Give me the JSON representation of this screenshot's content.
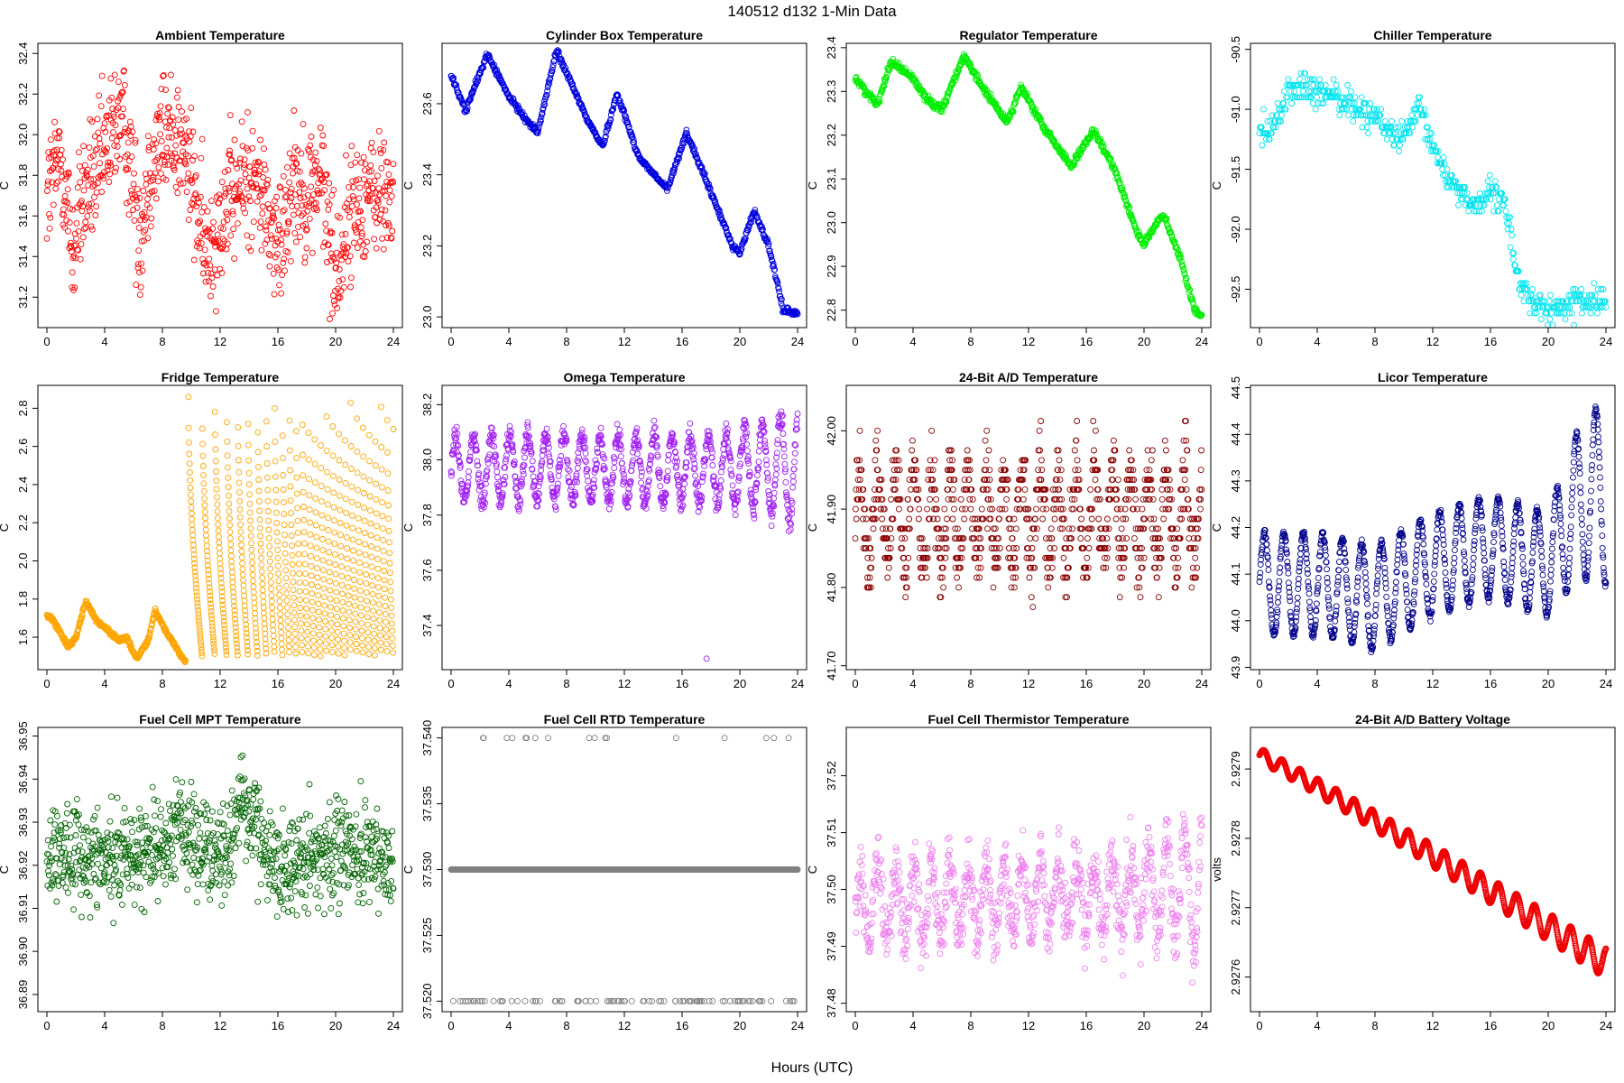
{
  "page_title": "140512   d132   1-Min Data",
  "x_label": "Hours (UTC)",
  "chart_data": [
    {
      "type": "scatter",
      "title": "Ambient Temperature",
      "ylabel": "C",
      "color": "#ff0000",
      "xlim": [
        0,
        24
      ],
      "ylim": [
        31.05,
        32.45
      ],
      "xticks": [
        0,
        4,
        8,
        12,
        16,
        20,
        24
      ],
      "yticks": [
        31.2,
        31.4,
        31.6,
        31.8,
        32.0,
        32.2,
        32.4
      ],
      "ytick_labels": [
        "31.2",
        "31.4",
        "31.6",
        "31.8",
        "32.0",
        "32.2",
        "32.4"
      ],
      "pattern": {
        "kind": "noisy",
        "curve": [
          [
            0,
            31.7
          ],
          [
            1,
            31.9
          ],
          [
            1.8,
            31.4
          ],
          [
            2.5,
            31.7
          ],
          [
            3.5,
            31.8
          ],
          [
            5,
            32.1
          ],
          [
            5.5,
            32.0
          ],
          [
            6.5,
            31.5
          ],
          [
            7,
            31.8
          ],
          [
            8,
            32.0
          ],
          [
            9,
            32.0
          ],
          [
            10,
            31.8
          ],
          [
            11,
            31.4
          ],
          [
            12,
            31.6
          ],
          [
            13,
            31.7
          ],
          [
            14,
            31.8
          ],
          [
            15,
            31.7
          ],
          [
            16,
            31.4
          ],
          [
            17,
            31.8
          ],
          [
            18,
            31.7
          ],
          [
            19,
            31.8
          ],
          [
            20,
            31.3
          ],
          [
            21,
            31.6
          ],
          [
            22,
            31.7
          ],
          [
            23,
            31.7
          ],
          [
            24,
            31.7
          ]
        ],
        "noise": 0.22,
        "n": 900
      }
    },
    {
      "type": "scatter",
      "title": "Cylinder Box Temperature",
      "ylabel": "C",
      "color": "#0000dd",
      "xlim": [
        0,
        24
      ],
      "ylim": [
        22.97,
        23.77
      ],
      "xticks": [
        0,
        4,
        8,
        12,
        16,
        20,
        24
      ],
      "yticks": [
        23.0,
        23.2,
        23.4,
        23.6
      ],
      "ytick_labels": [
        "23.0",
        "23.2",
        "23.4",
        "23.6"
      ],
      "pattern": {
        "kind": "smooth",
        "curve": [
          [
            0,
            23.68
          ],
          [
            1,
            23.58
          ],
          [
            2.5,
            23.74
          ],
          [
            4,
            23.62
          ],
          [
            5.5,
            23.54
          ],
          [
            6,
            23.52
          ],
          [
            7.3,
            23.75
          ],
          [
            9.5,
            23.55
          ],
          [
            10.5,
            23.48
          ],
          [
            11.5,
            23.63
          ],
          [
            13,
            23.45
          ],
          [
            14.5,
            23.38
          ],
          [
            15,
            23.36
          ],
          [
            16.3,
            23.52
          ],
          [
            18,
            23.35
          ],
          [
            19.5,
            23.2
          ],
          [
            20,
            23.18
          ],
          [
            21,
            23.3
          ],
          [
            22,
            23.2
          ],
          [
            23,
            23.02
          ],
          [
            24,
            23.01
          ]
        ],
        "noise": 0.006,
        "n": 700
      }
    },
    {
      "type": "scatter",
      "title": "Regulator Temperature",
      "ylabel": "C",
      "color": "#00ee00",
      "xlim": [
        0,
        24
      ],
      "ylim": [
        22.76,
        23.41
      ],
      "xticks": [
        0,
        4,
        8,
        12,
        16,
        20,
        24
      ],
      "yticks": [
        22.8,
        22.9,
        23.0,
        23.1,
        23.2,
        23.3,
        23.4
      ],
      "ytick_labels": [
        "22.8",
        "22.9",
        "23.0",
        "23.1",
        "23.2",
        "23.3",
        "23.4"
      ],
      "pattern": {
        "kind": "smooth",
        "curve": [
          [
            0,
            23.33
          ],
          [
            1.5,
            23.27
          ],
          [
            2.5,
            23.37
          ],
          [
            4,
            23.33
          ],
          [
            5,
            23.28
          ],
          [
            6,
            23.26
          ],
          [
            7.5,
            23.38
          ],
          [
            9,
            23.3
          ],
          [
            10.5,
            23.23
          ],
          [
            11.5,
            23.31
          ],
          [
            13,
            23.22
          ],
          [
            14.5,
            23.15
          ],
          [
            15,
            23.13
          ],
          [
            16.5,
            23.21
          ],
          [
            18,
            23.12
          ],
          [
            19.5,
            22.98
          ],
          [
            20,
            22.95
          ],
          [
            21.3,
            23.02
          ],
          [
            22.5,
            22.92
          ],
          [
            23.5,
            22.8
          ],
          [
            24,
            22.79
          ]
        ],
        "noise": 0.006,
        "n": 700
      }
    },
    {
      "type": "scatter",
      "title": "Chiller Temperature",
      "ylabel": "C",
      "color": "#00e5ee",
      "xlim": [
        0,
        24
      ],
      "ylim": [
        -92.82,
        -90.45
      ],
      "xticks": [
        0,
        4,
        8,
        12,
        16,
        20,
        24
      ],
      "yticks": [
        -92.5,
        -92.0,
        -91.5,
        -91.0,
        -90.5
      ],
      "ytick_labels": [
        "-92.5",
        "-92.0",
        "-91.5",
        "-91.0",
        "-90.5"
      ],
      "pattern": {
        "kind": "quant",
        "curve": [
          [
            0,
            -91.15
          ],
          [
            1,
            -91.15
          ],
          [
            2,
            -90.85
          ],
          [
            3,
            -90.8
          ],
          [
            4,
            -90.9
          ],
          [
            5,
            -90.85
          ],
          [
            6,
            -90.95
          ],
          [
            7,
            -91.0
          ],
          [
            8,
            -91.05
          ],
          [
            9,
            -91.2
          ],
          [
            10,
            -91.25
          ],
          [
            11,
            -91.0
          ],
          [
            12,
            -91.3
          ],
          [
            13,
            -91.55
          ],
          [
            14,
            -91.7
          ],
          [
            15,
            -91.8
          ],
          [
            16,
            -91.7
          ],
          [
            17,
            -91.8
          ],
          [
            18,
            -92.45
          ],
          [
            19,
            -92.6
          ],
          [
            20,
            -92.7
          ],
          [
            21,
            -92.65
          ],
          [
            22,
            -92.6
          ],
          [
            23,
            -92.6
          ],
          [
            24,
            -92.6
          ]
        ],
        "noise": 0.14,
        "step": 0.05,
        "n": 520
      }
    },
    {
      "type": "scatter",
      "title": "Fridge Temperature",
      "ylabel": "C",
      "color": "#ffa500",
      "xlim": [
        0,
        24
      ],
      "ylim": [
        1.43,
        2.92
      ],
      "xticks": [
        0,
        4,
        8,
        12,
        16,
        20,
        24
      ],
      "yticks": [
        1.6,
        1.8,
        2.0,
        2.2,
        2.4,
        2.6,
        2.8
      ],
      "ytick_labels": [
        "1.6",
        "1.8",
        "2.0",
        "2.2",
        "2.4",
        "2.6",
        "2.8"
      ],
      "pattern": {
        "kind": "fridge",
        "curve": [
          [
            0,
            1.72
          ],
          [
            0.5,
            1.68
          ],
          [
            1.5,
            1.55
          ],
          [
            2,
            1.6
          ],
          [
            2.7,
            1.79
          ],
          [
            3.5,
            1.68
          ],
          [
            4.2,
            1.64
          ],
          [
            5,
            1.58
          ],
          [
            5.5,
            1.6
          ],
          [
            6.2,
            1.49
          ],
          [
            7,
            1.58
          ],
          [
            7.5,
            1.74
          ],
          [
            8.5,
            1.6
          ],
          [
            9.5,
            1.48
          ]
        ],
        "noise": 0.008,
        "n": 1100
      }
    },
    {
      "type": "scatter",
      "title": "Omega Temperature",
      "ylabel": "C",
      "color": "#a020f0",
      "xlim": [
        0,
        24
      ],
      "ylim": [
        37.24,
        38.27
      ],
      "xticks": [
        0,
        4,
        8,
        12,
        16,
        20,
        24
      ],
      "yticks": [
        37.4,
        37.6,
        37.8,
        38.0,
        38.2
      ],
      "ytick_labels": [
        "37.4",
        "37.6",
        "37.8",
        "38.0",
        "38.2"
      ],
      "pattern": {
        "kind": "osc",
        "base": 37.97,
        "amp": 0.12,
        "period": 1.25,
        "noise": 0.03,
        "ampEnd": 0.2,
        "n": 1000,
        "outlier": [
          17.7,
          37.28
        ]
      }
    },
    {
      "type": "scatter",
      "title": "24-Bit A/D Temperature",
      "ylabel": "C",
      "color": "#8b0000",
      "xlim": [
        0,
        24
      ],
      "ylim": [
        41.695,
        42.058
      ],
      "xticks": [
        0,
        4,
        8,
        12,
        16,
        20,
        24
      ],
      "yticks": [
        41.7,
        41.8,
        41.9,
        42.0
      ],
      "ytick_labels": [
        "41.70",
        "41.80",
        "41.90",
        "42.00"
      ],
      "pattern": {
        "kind": "quantosc",
        "base": 41.89,
        "amp": 0.06,
        "period": 1.25,
        "noise": 0.035,
        "step": 0.0125,
        "n": 1000
      }
    },
    {
      "type": "scatter",
      "title": "Licor Temperature",
      "ylabel": "C",
      "color": "#00008b",
      "xlim": [
        0,
        24
      ],
      "ylim": [
        43.895,
        44.505
      ],
      "xticks": [
        0,
        4,
        8,
        12,
        16,
        20,
        24
      ],
      "yticks": [
        43.9,
        44.0,
        44.1,
        44.2,
        44.3,
        44.4,
        44.5
      ],
      "ytick_labels": [
        "43.9",
        "44.0",
        "44.1",
        "44.2",
        "44.3",
        "44.4",
        "44.5"
      ],
      "pattern": {
        "kind": "licor",
        "curve": [
          [
            0,
            44.08
          ],
          [
            4,
            44.08
          ],
          [
            8,
            44.05
          ],
          [
            12,
            44.12
          ],
          [
            16,
            44.16
          ],
          [
            20,
            44.12
          ],
          [
            22,
            44.25
          ],
          [
            24,
            44.28
          ]
        ],
        "amp": 0.11,
        "ampEnd": 0.2,
        "period": 1.35,
        "n": 1000
      }
    },
    {
      "type": "scatter",
      "title": "Fuel Cell MPT Temperature",
      "ylabel": "C",
      "color": "#006400",
      "xlim": [
        0,
        24
      ],
      "ylim": [
        36.886,
        36.952
      ],
      "xticks": [
        0,
        4,
        8,
        12,
        16,
        20,
        24
      ],
      "yticks": [
        36.89,
        36.9,
        36.91,
        36.92,
        36.93,
        36.94,
        36.95
      ],
      "ytick_labels": [
        "36.89",
        "36.90",
        "36.91",
        "36.92",
        "36.93",
        "36.94",
        "36.95"
      ],
      "pattern": {
        "kind": "noisy",
        "curve": [
          [
            0,
            36.923
          ],
          [
            4,
            36.922
          ],
          [
            8,
            36.924
          ],
          [
            9,
            36.93
          ],
          [
            12,
            36.921
          ],
          [
            13.5,
            36.935
          ],
          [
            16,
            36.919
          ],
          [
            20,
            36.924
          ],
          [
            24,
            36.92
          ]
        ],
        "noise": 0.008,
        "n": 1000
      }
    },
    {
      "type": "scatter",
      "title": "Fuel Cell RTD Temperature",
      "ylabel": "C",
      "color": "#808080",
      "xlim": [
        0,
        24
      ],
      "ylim": [
        37.5192,
        37.5408
      ],
      "xticks": [
        0,
        4,
        8,
        12,
        16,
        20,
        24
      ],
      "yticks": [
        37.52,
        37.525,
        37.53,
        37.535,
        37.54
      ],
      "ytick_labels": [
        "37.520",
        "37.525",
        "37.530",
        "37.535",
        "37.540"
      ],
      "pattern": {
        "kind": "rtd",
        "main": 37.53,
        "low": 37.52,
        "high": 37.54,
        "n": 900
      }
    },
    {
      "type": "scatter",
      "title": "Fuel Cell Thermistor Temperature",
      "ylabel": "C",
      "color": "#ee82ee",
      "xlim": [
        0,
        24
      ],
      "ylim": [
        37.4785,
        37.5285
      ],
      "xticks": [
        0,
        4,
        8,
        12,
        16,
        20,
        24
      ],
      "yticks": [
        37.48,
        37.49,
        37.5,
        37.51,
        37.52
      ],
      "ytick_labels": [
        "37.48",
        "37.49",
        "37.50",
        "37.51",
        "37.52"
      ],
      "pattern": {
        "kind": "osc",
        "base": 37.497,
        "amp": 0.006,
        "period": 1.25,
        "noise": 0.004,
        "ampEnd": 0.012,
        "n": 1000,
        "trend": 0.003
      }
    },
    {
      "type": "scatter",
      "title": "24-Bit A/D Battery Voltage",
      "ylabel": "volts",
      "color": "#ee0000",
      "xlim": [
        0,
        24
      ],
      "ylim": [
        2.92755,
        2.92796
      ],
      "xticks": [
        0,
        4,
        8,
        12,
        16,
        20,
        24
      ],
      "yticks": [
        2.9276,
        2.9277,
        2.9278,
        2.9279
      ],
      "ytick_labels": [
        "2.9276",
        "2.9277",
        "2.9278",
        "2.9279"
      ],
      "pattern": {
        "kind": "battery",
        "start": 2.92792,
        "end": 2.92762,
        "amp": 1e-05,
        "ampEnd": 2.2e-05,
        "period": 1.25,
        "n": 1100
      }
    }
  ]
}
